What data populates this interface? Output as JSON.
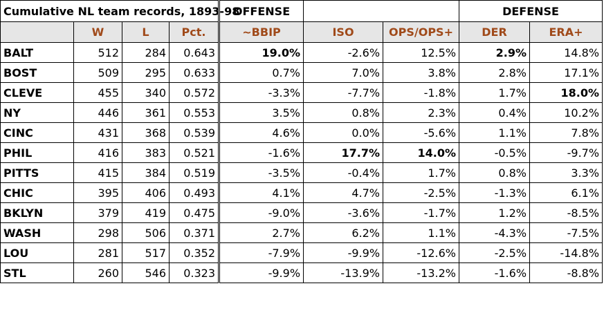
{
  "title": "Cumulative NL team records, 1893-98",
  "groups": {
    "offense": "OFFENSE",
    "defense": "DEFENSE"
  },
  "headers": [
    "",
    "W",
    "L",
    "Pct.",
    "~BBIP",
    "ISO",
    "OPS/OPS+",
    "DER",
    "ERA+"
  ],
  "rows": [
    {
      "team": "BALT",
      "w": "512",
      "l": "284",
      "pct": "0.643",
      "bbip": "19.0%",
      "iso": "-2.6%",
      "ops": "12.5%",
      "der": "2.9%",
      "era": "14.8%",
      "bold": [
        "bbip",
        "der"
      ]
    },
    {
      "team": "BOST",
      "w": "509",
      "l": "295",
      "pct": "0.633",
      "bbip": "0.7%",
      "iso": "7.0%",
      "ops": "3.8%",
      "der": "2.8%",
      "era": "17.1%",
      "bold": []
    },
    {
      "team": "CLEVE",
      "w": "455",
      "l": "340",
      "pct": "0.572",
      "bbip": "-3.3%",
      "iso": "-7.7%",
      "ops": "-1.8%",
      "der": "1.7%",
      "era": "18.0%",
      "bold": [
        "era"
      ]
    },
    {
      "team": "NY",
      "w": "446",
      "l": "361",
      "pct": "0.553",
      "bbip": "3.5%",
      "iso": "0.8%",
      "ops": "2.3%",
      "der": "0.4%",
      "era": "10.2%",
      "bold": []
    },
    {
      "team": "CINC",
      "w": "431",
      "l": "368",
      "pct": "0.539",
      "bbip": "4.6%",
      "iso": "0.0%",
      "ops": "-5.6%",
      "der": "1.1%",
      "era": "7.8%",
      "bold": []
    },
    {
      "team": "PHIL",
      "w": "416",
      "l": "383",
      "pct": "0.521",
      "bbip": "-1.6%",
      "iso": "17.7%",
      "ops": "14.0%",
      "der": "-0.5%",
      "era": "-9.7%",
      "bold": [
        "iso",
        "ops"
      ]
    },
    {
      "team": "PITTS",
      "w": "415",
      "l": "384",
      "pct": "0.519",
      "bbip": "-3.5%",
      "iso": "-0.4%",
      "ops": "1.7%",
      "der": "0.8%",
      "era": "3.3%",
      "bold": []
    },
    {
      "team": "CHIC",
      "w": "395",
      "l": "406",
      "pct": "0.493",
      "bbip": "4.1%",
      "iso": "4.7%",
      "ops": "-2.5%",
      "der": "-1.3%",
      "era": "6.1%",
      "bold": []
    },
    {
      "team": "BKLYN",
      "w": "379",
      "l": "419",
      "pct": "0.475",
      "bbip": "-9.0%",
      "iso": "-3.6%",
      "ops": "-1.7%",
      "der": "1.2%",
      "era": "-8.5%",
      "bold": []
    },
    {
      "team": "WASH",
      "w": "298",
      "l": "506",
      "pct": "0.371",
      "bbip": "2.7%",
      "iso": "6.2%",
      "ops": "1.1%",
      "der": "-4.3%",
      "era": "-7.5%",
      "bold": []
    },
    {
      "team": "LOU",
      "w": "281",
      "l": "517",
      "pct": "0.352",
      "bbip": "-7.9%",
      "iso": "-9.9%",
      "ops": "-12.6%",
      "der": "-2.5%",
      "era": "-14.8%",
      "bold": []
    },
    {
      "team": "STL",
      "w": "260",
      "l": "546",
      "pct": "0.323",
      "bbip": "-9.9%",
      "iso": "-13.9%",
      "ops": "-13.2%",
      "der": "-1.6%",
      "era": "-8.8%",
      "bold": []
    }
  ]
}
